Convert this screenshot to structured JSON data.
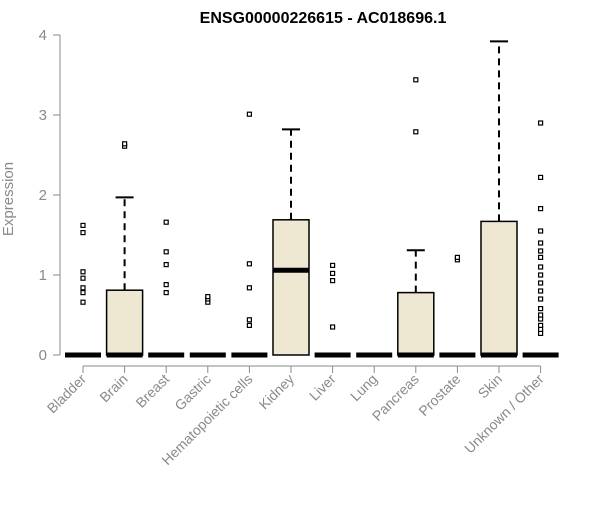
{
  "chart_data": {
    "type": "box",
    "title": "ENSG00000226615 - AC018696.1",
    "xlabel": "",
    "ylabel": "Expression",
    "ylim": [
      0,
      4
    ],
    "yticks": [
      0,
      1,
      2,
      3,
      4
    ],
    "grid": false,
    "legend": "none",
    "box_fill": "#EEE8D2",
    "box_stroke": "#000000",
    "axis_color": "#8A8A8A",
    "categories": [
      "Bladder",
      "Brain",
      "Breast",
      "Gastric",
      "Hematopoietic cells",
      "Kidney",
      "Liver",
      "Lung",
      "Pancreas",
      "Prostate",
      "Skin",
      "Unknown / Other"
    ],
    "boxes": [
      {
        "q1": 0,
        "median": 0,
        "q3": 0,
        "whisker_low": 0,
        "whisker_high": 0,
        "outliers": [
          0.66,
          0.78,
          0.84,
          0.96,
          1.04,
          1.53,
          1.62
        ]
      },
      {
        "q1": 0,
        "median": 0,
        "q3": 0.81,
        "whisker_low": 0,
        "whisker_high": 1.97,
        "outliers": [
          2.61,
          2.64
        ]
      },
      {
        "q1": 0,
        "median": 0,
        "q3": 0,
        "whisker_low": 0,
        "whisker_high": 0,
        "outliers": [
          0.78,
          0.88,
          1.13,
          1.29,
          1.66
        ]
      },
      {
        "q1": 0,
        "median": 0,
        "q3": 0,
        "whisker_low": 0,
        "whisker_high": 0,
        "outliers": [
          0.66,
          0.7,
          0.73
        ]
      },
      {
        "q1": 0,
        "median": 0,
        "q3": 0,
        "whisker_low": 0,
        "whisker_high": 0,
        "outliers": [
          0.37,
          0.44,
          0.84,
          1.14,
          3.01
        ]
      },
      {
        "q1": 0,
        "median": 1.06,
        "q3": 1.69,
        "whisker_low": 0,
        "whisker_high": 2.82,
        "outliers": []
      },
      {
        "q1": 0,
        "median": 0,
        "q3": 0,
        "whisker_low": 0,
        "whisker_high": 0,
        "outliers": [
          0.35,
          0.93,
          1.02,
          1.12
        ]
      },
      {
        "q1": 0,
        "median": 0,
        "q3": 0,
        "whisker_low": 0,
        "whisker_high": 0,
        "outliers": []
      },
      {
        "q1": 0,
        "median": 0,
        "q3": 0.78,
        "whisker_low": 0,
        "whisker_high": 1.31,
        "outliers": [
          2.79,
          3.44
        ]
      },
      {
        "q1": 0,
        "median": 0,
        "q3": 0,
        "whisker_low": 0,
        "whisker_high": 0,
        "outliers": [
          1.19,
          1.22
        ]
      },
      {
        "q1": 0,
        "median": 0,
        "q3": 1.67,
        "whisker_low": 0,
        "whisker_high": 3.92,
        "outliers": []
      },
      {
        "q1": 0,
        "median": 0,
        "q3": 0,
        "whisker_low": 0,
        "whisker_high": 0,
        "outliers": [
          0.27,
          0.32,
          0.37,
          0.45,
          0.5,
          0.58,
          0.7,
          0.8,
          0.9,
          1.0,
          1.1,
          1.22,
          1.3,
          1.4,
          1.55,
          1.83,
          2.22,
          2.9
        ]
      }
    ]
  }
}
